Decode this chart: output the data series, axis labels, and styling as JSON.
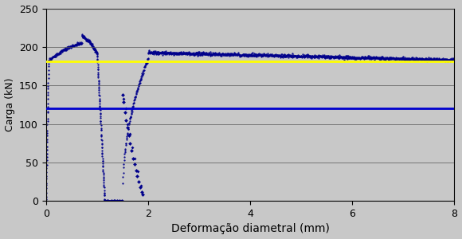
{
  "xlabel": "Deformação diametral (mm)",
  "ylabel": "Carga (kN)",
  "xlim": [
    0,
    8
  ],
  "ylim": [
    0,
    250
  ],
  "xticks": [
    0,
    2,
    4,
    6,
    8
  ],
  "yticks": [
    0,
    50,
    100,
    150,
    200,
    250
  ],
  "yellow_line_y": 181,
  "blue_line_y": 120,
  "bg_color": "#c8c8c8",
  "fig_color": "#c8c8c8",
  "plot_color": "#00008B",
  "yellow_color": "#FFFF00",
  "blue_hline_color": "#0000CD",
  "xlabel_fontsize": 10,
  "ylabel_fontsize": 9,
  "tick_fontsize": 9
}
